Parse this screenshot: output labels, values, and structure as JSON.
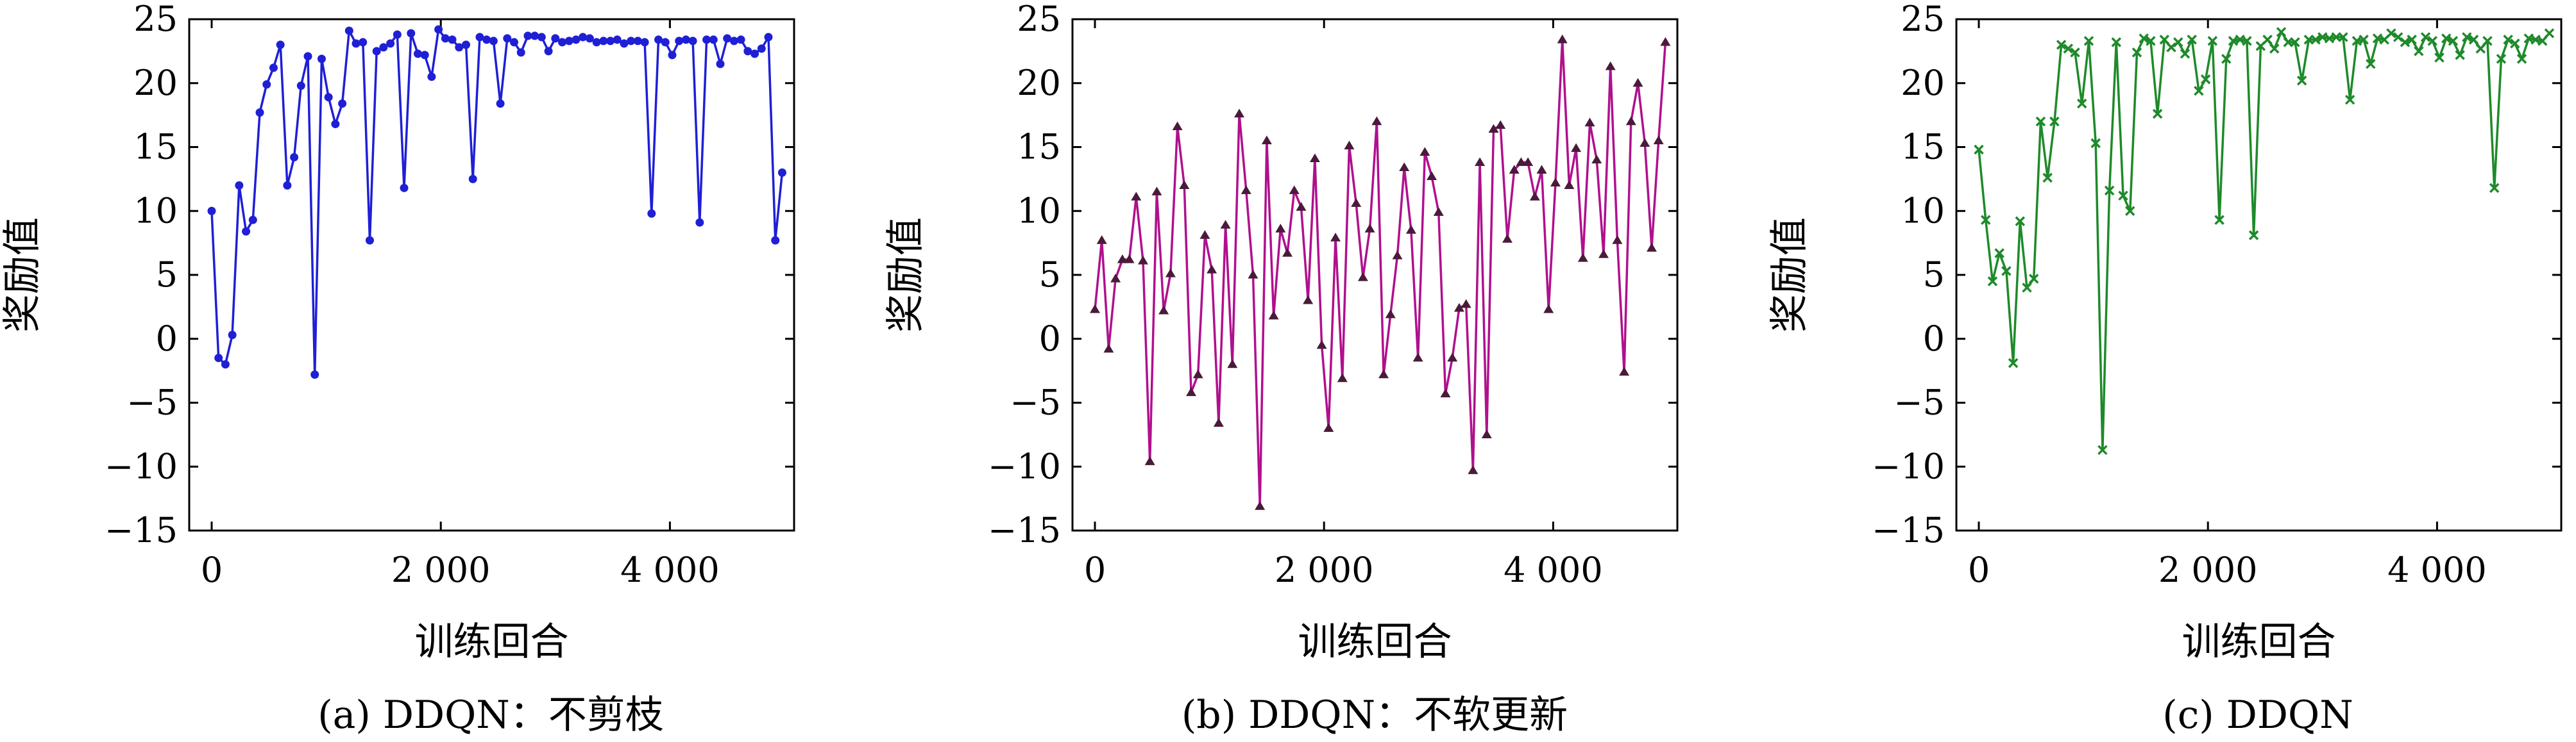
{
  "chart_data": [
    {
      "type": "line",
      "caption": "(a) DDQN：不剪枝",
      "xlabel": "训练回合",
      "ylabel": "奖励值",
      "xlim": [
        0,
        5000
      ],
      "ylim": [
        -15,
        25
      ],
      "xticks": [
        0,
        2000,
        4000
      ],
      "xtick_labels": [
        "0",
        "2 000",
        "4 000"
      ],
      "yticks": [
        -15,
        -10,
        -5,
        0,
        5,
        10,
        15,
        20,
        25
      ],
      "ytick_labels": [
        "−15",
        "−10",
        "−5",
        "0",
        "5",
        "10",
        "15",
        "20",
        "25"
      ],
      "grid": false,
      "line_color": "#1f1fd6",
      "marker_color": "#1f1fd6",
      "marker": "dot",
      "series": [
        {
          "x": [
            0,
            60,
            120,
            180,
            240,
            300,
            360,
            420,
            480,
            540,
            600,
            660,
            720,
            780,
            840,
            900,
            960,
            1020,
            1080,
            1140,
            1200,
            1260,
            1320,
            1380,
            1440,
            1500,
            1560,
            1620,
            1680,
            1740,
            1800,
            1860,
            1920,
            1980,
            2040,
            2100,
            2160,
            2220,
            2280,
            2340,
            2400,
            2460,
            2520,
            2580,
            2640,
            2700,
            2760,
            2820,
            2880,
            2940,
            3000,
            3060,
            3120,
            3180,
            3240,
            3300,
            3360,
            3420,
            3480,
            3540,
            3600,
            3660,
            3720,
            3780,
            3840,
            3900,
            3960,
            4020,
            4080,
            4140,
            4200,
            4260,
            4320,
            4380,
            4440,
            4500,
            4560,
            4620,
            4680,
            4740,
            4800,
            4860,
            4920,
            4980
          ],
          "y": [
            10,
            -1.5,
            -2,
            0.3,
            12,
            8.4,
            9.3,
            17.7,
            19.9,
            21.2,
            23,
            12,
            14.2,
            19.8,
            22.1,
            -2.8,
            21.9,
            18.9,
            16.8,
            18.4,
            24.1,
            23.1,
            23.2,
            7.7,
            22.5,
            22.8,
            23.1,
            23.8,
            11.8,
            23.9,
            22.3,
            22.2,
            20.5,
            24.2,
            23.5,
            23.4,
            22.8,
            23,
            12.5,
            23.6,
            23.4,
            23.3,
            18.4,
            23.5,
            23.2,
            22.4,
            23.7,
            23.7,
            23.6,
            22.5,
            23.5,
            23.2,
            23.3,
            23.4,
            23.6,
            23.5,
            23.2,
            23.3,
            23.3,
            23.4,
            23.1,
            23.3,
            23.3,
            23.2,
            9.8,
            23.4,
            23.2,
            22.2,
            23.3,
            23.4,
            23.3,
            9.1,
            23.4,
            23.4,
            21.5,
            23.5,
            23.3,
            23.4,
            22.5,
            22.3,
            22.7,
            23.6,
            7.7,
            13
          ]
        }
      ]
    },
    {
      "type": "line",
      "caption": "(b) DDQN：不软更新",
      "xlabel": "训练回合",
      "ylabel": "奖励值",
      "xlim": [
        0,
        5000
      ],
      "ylim": [
        -15,
        25
      ],
      "xticks": [
        0,
        2000,
        4000
      ],
      "xtick_labels": [
        "0",
        "2 000",
        "4 000"
      ],
      "yticks": [
        -15,
        -10,
        -5,
        0,
        5,
        10,
        15,
        20,
        25
      ],
      "ytick_labels": [
        "−15",
        "−10",
        "−5",
        "0",
        "5",
        "10",
        "15",
        "20",
        "25"
      ],
      "grid": false,
      "line_color": "#b0108e",
      "marker_color": "#4a1a3a",
      "marker": "triangle",
      "series": [
        {
          "x": [
            0,
            60,
            120,
            180,
            240,
            300,
            360,
            420,
            480,
            540,
            600,
            660,
            720,
            780,
            840,
            900,
            960,
            1020,
            1080,
            1140,
            1200,
            1260,
            1320,
            1380,
            1440,
            1500,
            1560,
            1620,
            1680,
            1740,
            1800,
            1860,
            1920,
            1980,
            2040,
            2100,
            2160,
            2220,
            2280,
            2340,
            2400,
            2460,
            2520,
            2580,
            2640,
            2700,
            2760,
            2820,
            2880,
            2940,
            3000,
            3060,
            3120,
            3180,
            3240,
            3300,
            3360,
            3420,
            3480,
            3540,
            3600,
            3660,
            3720,
            3780,
            3840,
            3900,
            3960,
            4020,
            4080,
            4140,
            4200,
            4260,
            4320,
            4380,
            4440,
            4500,
            4560,
            4620,
            4680,
            4740,
            4800,
            4860,
            4920,
            4980
          ],
          "y": [
            2.3,
            7.7,
            -0.8,
            4.7,
            6.2,
            6.2,
            11.1,
            6.1,
            -9.6,
            11.5,
            2.2,
            5.1,
            16.6,
            12,
            -4.2,
            -2.8,
            8.1,
            5.4,
            -6.6,
            8.9,
            -2,
            17.6,
            11.6,
            5,
            -13.1,
            15.5,
            1.8,
            8.6,
            6.7,
            11.6,
            10.3,
            3,
            14.1,
            -0.5,
            -7,
            7.9,
            -3.1,
            15.1,
            10.6,
            4.8,
            8.6,
            17,
            -2.8,
            1.9,
            6.5,
            13.4,
            8.5,
            -1.5,
            14.6,
            12.7,
            9.9,
            -4.3,
            -1.5,
            2.4,
            2.7,
            -10.3,
            13.8,
            -7.5,
            16.4,
            16.7,
            7.8,
            13.2,
            13.8,
            13.8,
            11.1,
            13.2,
            2.3,
            12.2,
            23.4,
            12,
            14.9,
            6.3,
            16.9,
            14,
            6.6,
            21.3,
            7.7,
            -2.6,
            17,
            20,
            15.3,
            7.1,
            15.5,
            23.2
          ]
        }
      ]
    },
    {
      "type": "line",
      "caption": "(c) DDQN",
      "xlabel": "训练回合",
      "ylabel": "奖励值",
      "xlim": [
        0,
        5000
      ],
      "ylim": [
        -15,
        25
      ],
      "xticks": [
        0,
        2000,
        4000
      ],
      "xtick_labels": [
        "0",
        "2 000",
        "4 000"
      ],
      "yticks": [
        -15,
        -10,
        -5,
        0,
        5,
        10,
        15,
        20,
        25
      ],
      "ytick_labels": [
        "−15",
        "−10",
        "−5",
        "0",
        "5",
        "10",
        "15",
        "20",
        "25"
      ],
      "grid": false,
      "line_color": "#1e8a2a",
      "marker_color": "#1e8a2a",
      "marker": "cross",
      "series": [
        {
          "x": [
            0,
            60,
            120,
            180,
            240,
            300,
            360,
            420,
            480,
            540,
            600,
            660,
            720,
            780,
            840,
            900,
            960,
            1020,
            1080,
            1140,
            1200,
            1260,
            1320,
            1380,
            1440,
            1500,
            1560,
            1620,
            1680,
            1740,
            1800,
            1860,
            1920,
            1980,
            2040,
            2100,
            2160,
            2220,
            2280,
            2340,
            2400,
            2460,
            2520,
            2580,
            2640,
            2700,
            2760,
            2820,
            2880,
            2940,
            3000,
            3060,
            3120,
            3180,
            3240,
            3300,
            3360,
            3420,
            3480,
            3540,
            3600,
            3660,
            3720,
            3780,
            3840,
            3900,
            3960,
            4020,
            4080,
            4140,
            4200,
            4260,
            4320,
            4380,
            4440,
            4500,
            4560,
            4620,
            4680,
            4740,
            4800,
            4860,
            4920,
            4980
          ],
          "y": [
            14.8,
            9.3,
            4.5,
            6.7,
            5.3,
            -1.9,
            9.2,
            4,
            4.7,
            17,
            12.6,
            17,
            23,
            22.7,
            22.4,
            18.4,
            23.3,
            15.3,
            -8.7,
            11.6,
            23.2,
            11.2,
            10,
            22.4,
            23.5,
            23.3,
            17.6,
            23.4,
            22.8,
            23.2,
            22.3,
            23.4,
            19.4,
            20.3,
            23.3,
            9.3,
            21.9,
            23.3,
            23.4,
            23.3,
            8.1,
            22.9,
            23.4,
            22.7,
            24,
            23.2,
            23.2,
            20.2,
            23.4,
            23.4,
            23.6,
            23.5,
            23.6,
            23.6,
            18.7,
            23.3,
            23.4,
            21.5,
            23.5,
            23.4,
            23.9,
            23.6,
            23.2,
            23.4,
            22.5,
            23.6,
            23.3,
            22,
            23.5,
            23.3,
            22.2,
            23.6,
            23.4,
            22.7,
            23.3,
            11.8,
            21.9,
            23.4,
            23.1,
            21.9,
            23.5,
            23.4,
            23.3,
            23.9
          ]
        }
      ]
    }
  ]
}
